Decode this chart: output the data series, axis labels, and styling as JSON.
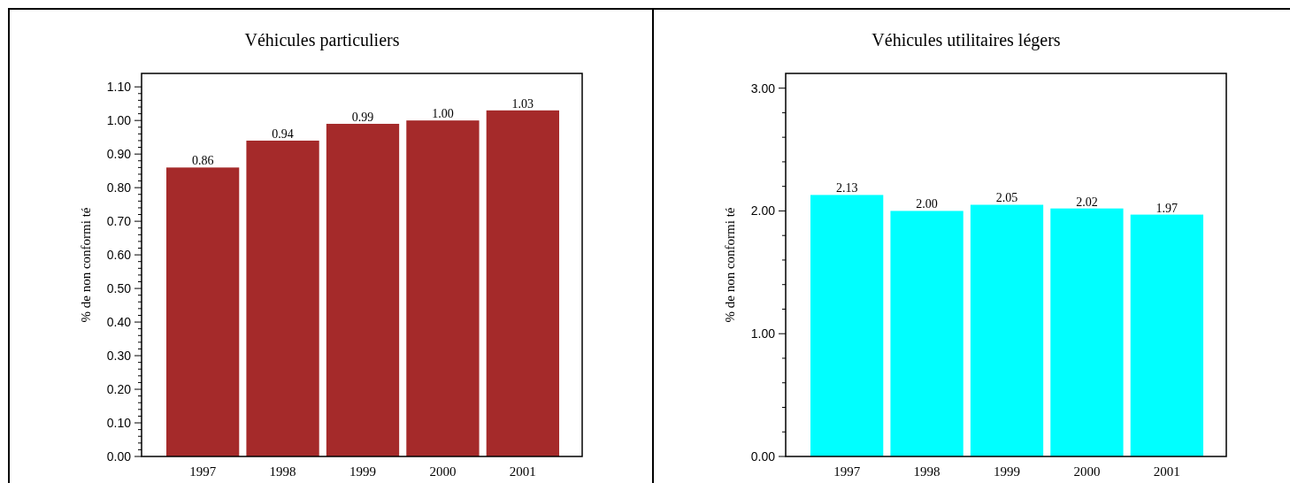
{
  "chart_data": [
    {
      "type": "bar",
      "title": "Véhicules particuliers",
      "ylabel": "% de non conformi té",
      "categories": [
        "1997",
        "1998",
        "1999",
        "2000",
        "2001"
      ],
      "values": [
        0.86,
        0.94,
        0.99,
        1.0,
        1.03
      ],
      "value_labels": [
        "0.86",
        "0.94",
        "0.99",
        "1.00",
        "1.03"
      ],
      "color": "#a52a2a",
      "grid": false,
      "ylim": [
        0,
        1.14
      ],
      "yticks": [
        {
          "value": 0,
          "label": "0.00"
        },
        {
          "value": 0.02,
          "label": null
        },
        {
          "value": 0.04,
          "label": null
        },
        {
          "value": 0.06,
          "label": null
        },
        {
          "value": 0.08,
          "label": null
        },
        {
          "value": 0.1,
          "label": "0.10"
        },
        {
          "value": 0.12,
          "label": null
        },
        {
          "value": 0.14,
          "label": null
        },
        {
          "value": 0.16,
          "label": null
        },
        {
          "value": 0.18,
          "label": null
        },
        {
          "value": 0.2,
          "label": "0.20"
        },
        {
          "value": 0.22,
          "label": null
        },
        {
          "value": 0.24,
          "label": null
        },
        {
          "value": 0.26,
          "label": null
        },
        {
          "value": 0.28,
          "label": null
        },
        {
          "value": 0.3,
          "label": "0.30"
        },
        {
          "value": 0.32,
          "label": null
        },
        {
          "value": 0.34,
          "label": null
        },
        {
          "value": 0.36,
          "label": null
        },
        {
          "value": 0.38,
          "label": null
        },
        {
          "value": 0.4,
          "label": "0.40"
        },
        {
          "value": 0.42,
          "label": null
        },
        {
          "value": 0.44,
          "label": null
        },
        {
          "value": 0.46,
          "label": null
        },
        {
          "value": 0.48,
          "label": null
        },
        {
          "value": 0.5,
          "label": "0.50"
        },
        {
          "value": 0.52,
          "label": null
        },
        {
          "value": 0.54,
          "label": null
        },
        {
          "value": 0.56,
          "label": null
        },
        {
          "value": 0.58,
          "label": null
        },
        {
          "value": 0.6,
          "label": "0.60"
        },
        {
          "value": 0.62,
          "label": null
        },
        {
          "value": 0.64,
          "label": null
        },
        {
          "value": 0.66,
          "label": null
        },
        {
          "value": 0.68,
          "label": null
        },
        {
          "value": 0.7,
          "label": "0.70"
        },
        {
          "value": 0.72,
          "label": null
        },
        {
          "value": 0.74,
          "label": null
        },
        {
          "value": 0.76,
          "label": null
        },
        {
          "value": 0.78,
          "label": null
        },
        {
          "value": 0.8,
          "label": "0.80"
        },
        {
          "value": 0.82,
          "label": null
        },
        {
          "value": 0.84,
          "label": null
        },
        {
          "value": 0.86,
          "label": null
        },
        {
          "value": 0.88,
          "label": null
        },
        {
          "value": 0.9,
          "label": "0.90"
        },
        {
          "value": 0.92,
          "label": null
        },
        {
          "value": 0.94,
          "label": null
        },
        {
          "value": 0.96,
          "label": null
        },
        {
          "value": 0.98,
          "label": null
        },
        {
          "value": 1.0,
          "label": "1.00"
        },
        {
          "value": 1.02,
          "label": null
        },
        {
          "value": 1.04,
          "label": null
        },
        {
          "value": 1.06,
          "label": null
        },
        {
          "value": 1.08,
          "label": null
        },
        {
          "value": 1.1,
          "label": "1.10"
        }
      ]
    },
    {
      "type": "bar",
      "title": "Véhicules utilitaires légers",
      "ylabel": "% de non conformi té",
      "categories": [
        "1997",
        "1998",
        "1999",
        "2000",
        "2001"
      ],
      "values": [
        2.13,
        2.0,
        2.05,
        2.02,
        1.97
      ],
      "value_labels": [
        "2.13",
        "2.00",
        "2.05",
        "2.02",
        "1.97"
      ],
      "color": "#00ffff",
      "grid": false,
      "ylim": [
        0,
        3.12
      ],
      "yticks": [
        {
          "value": 0,
          "label": "0.00"
        },
        {
          "value": 0.2,
          "label": null
        },
        {
          "value": 0.4,
          "label": null
        },
        {
          "value": 0.6,
          "label": null
        },
        {
          "value": 0.8,
          "label": null
        },
        {
          "value": 1,
          "label": "1.00"
        },
        {
          "value": 1.2,
          "label": null
        },
        {
          "value": 1.4,
          "label": null
        },
        {
          "value": 1.6,
          "label": null
        },
        {
          "value": 1.8,
          "label": null
        },
        {
          "value": 2,
          "label": "2.00"
        },
        {
          "value": 2.2,
          "label": null
        },
        {
          "value": 2.4,
          "label": null
        },
        {
          "value": 2.6,
          "label": null
        },
        {
          "value": 2.8,
          "label": null
        },
        {
          "value": 3,
          "label": "3.00"
        }
      ]
    }
  ]
}
